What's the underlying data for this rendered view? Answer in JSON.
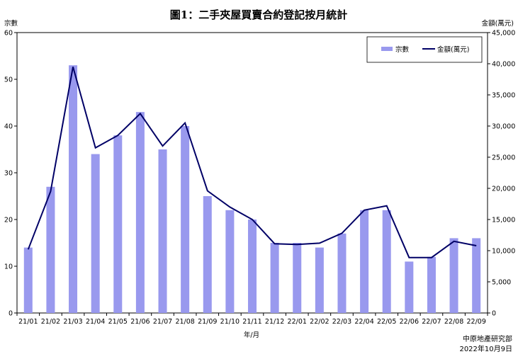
{
  "chart_data": {
    "type": "bar+line",
    "title": "圖1：二手夾屋買賣合約登記按月統計",
    "xlabel": "年/月",
    "ylabel_left": "宗數",
    "ylabel_right": "金額(萬元)",
    "categories": [
      "21/01",
      "21/02",
      "21/03",
      "21/04",
      "21/05",
      "21/06",
      "21/07",
      "21/08",
      "21/09",
      "21/10",
      "21/11",
      "21/12",
      "22/01",
      "22/02",
      "22/03",
      "22/04",
      "22/05",
      "22/06",
      "22/07",
      "22/08",
      "22/09"
    ],
    "series": [
      {
        "name": "宗數",
        "type": "bar",
        "axis": "left",
        "color": "#9999ee",
        "values": [
          14,
          27,
          53,
          34,
          38,
          43,
          35,
          40,
          25,
          22,
          20,
          15,
          15,
          14,
          17,
          22,
          22,
          11,
          12,
          16,
          16
        ]
      },
      {
        "name": "金額(萬元)",
        "type": "line",
        "axis": "right",
        "color": "#000066",
        "values": [
          10200,
          19500,
          39500,
          26500,
          28500,
          32000,
          26800,
          30500,
          19600,
          17000,
          15000,
          11100,
          11000,
          11200,
          12800,
          16500,
          17200,
          8900,
          8900,
          11500,
          10800
        ]
      }
    ],
    "ylim_left": [
      0,
      60
    ],
    "yticks_left": [
      0,
      10,
      20,
      30,
      40,
      50,
      60
    ],
    "ylim_right": [
      0,
      45000
    ],
    "yticks_right": [
      "0",
      "5,000",
      "10,000",
      "15,000",
      "20,000",
      "25,000",
      "30,000",
      "35,000",
      "40,000",
      "45,000"
    ],
    "legend_position": "top-right",
    "grid": false
  },
  "footer": {
    "source": "中原地產研究部",
    "date": "2022年10月9日"
  }
}
